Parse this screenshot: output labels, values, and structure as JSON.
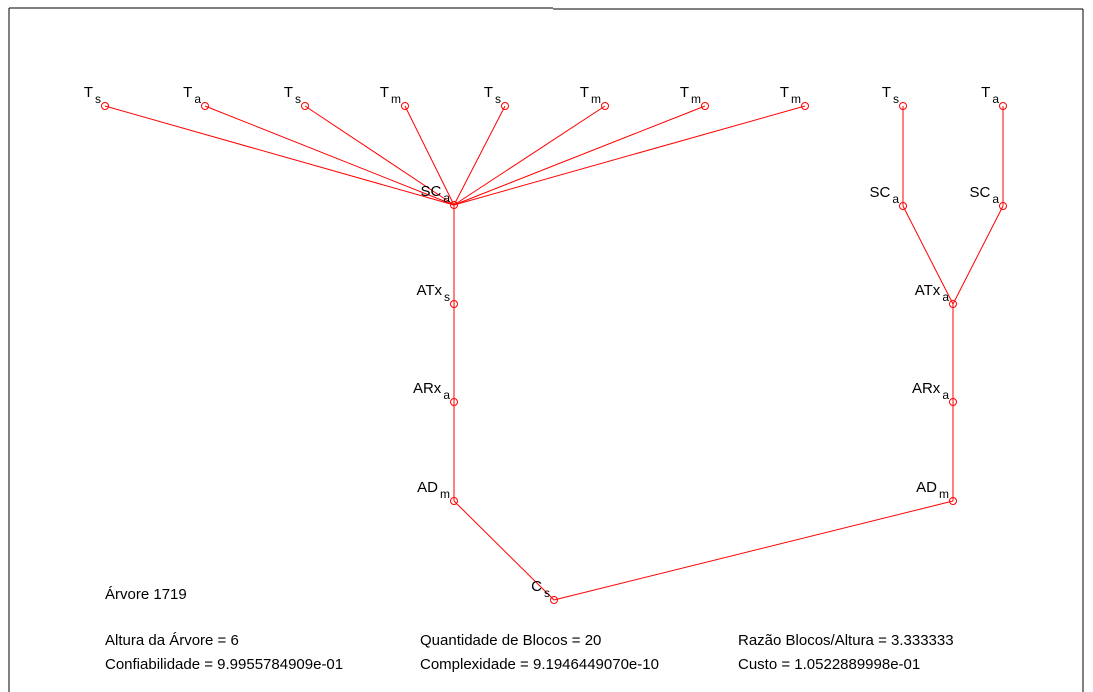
{
  "colors": {
    "edge": "#ff0000",
    "node": "#ff0000",
    "text": "#000000",
    "frame": "#000000"
  },
  "tree": {
    "nodes": [
      {
        "id": "t1",
        "base": "T",
        "sub": "s"
      },
      {
        "id": "t2",
        "base": "T",
        "sub": "a"
      },
      {
        "id": "t3",
        "base": "T",
        "sub": "s"
      },
      {
        "id": "t4",
        "base": "T",
        "sub": "m"
      },
      {
        "id": "t5",
        "base": "T",
        "sub": "s"
      },
      {
        "id": "t6",
        "base": "T",
        "sub": "m"
      },
      {
        "id": "t7",
        "base": "T",
        "sub": "m"
      },
      {
        "id": "t8",
        "base": "T",
        "sub": "m"
      },
      {
        "id": "t9",
        "base": "T",
        "sub": "s"
      },
      {
        "id": "t10",
        "base": "T",
        "sub": "a"
      },
      {
        "id": "sc1",
        "base": "SC",
        "sub": "a"
      },
      {
        "id": "sc2",
        "base": "SC",
        "sub": "a"
      },
      {
        "id": "sc3",
        "base": "SC",
        "sub": "a"
      },
      {
        "id": "atx1",
        "base": "ATx",
        "sub": "s"
      },
      {
        "id": "atx2",
        "base": "ATx",
        "sub": "a"
      },
      {
        "id": "arx1",
        "base": "ARx",
        "sub": "a"
      },
      {
        "id": "arx2",
        "base": "ARx",
        "sub": "a"
      },
      {
        "id": "ad1",
        "base": "AD",
        "sub": "m"
      },
      {
        "id": "ad2",
        "base": "AD",
        "sub": "m"
      },
      {
        "id": "c",
        "base": "C",
        "sub": "s"
      }
    ],
    "edges": [
      [
        "t1",
        "sc1"
      ],
      [
        "t2",
        "sc1"
      ],
      [
        "t3",
        "sc1"
      ],
      [
        "t4",
        "sc1"
      ],
      [
        "t5",
        "sc1"
      ],
      [
        "t6",
        "sc1"
      ],
      [
        "t7",
        "sc1"
      ],
      [
        "t8",
        "sc1"
      ],
      [
        "t9",
        "sc2"
      ],
      [
        "t10",
        "sc3"
      ],
      [
        "sc1",
        "atx1"
      ],
      [
        "sc2",
        "atx2"
      ],
      [
        "sc3",
        "atx2"
      ],
      [
        "atx1",
        "arx1"
      ],
      [
        "atx2",
        "arx2"
      ],
      [
        "arx1",
        "ad1"
      ],
      [
        "arx2",
        "ad2"
      ],
      [
        "ad1",
        "c"
      ],
      [
        "ad2",
        "c"
      ]
    ]
  },
  "info": {
    "title": "Árvore 1719",
    "altura": "Altura da Árvore = 6",
    "quantidade": "Quantidade de Blocos = 20",
    "razao": "Razão Blocos/Altura = 3.333333",
    "confiabilidade": "Confiabilidade = 9.9955784909e-01",
    "complexidade": "Complexidade = 9.1946449070e-10",
    "custo": "Custo = 1.0522889998e-01"
  }
}
